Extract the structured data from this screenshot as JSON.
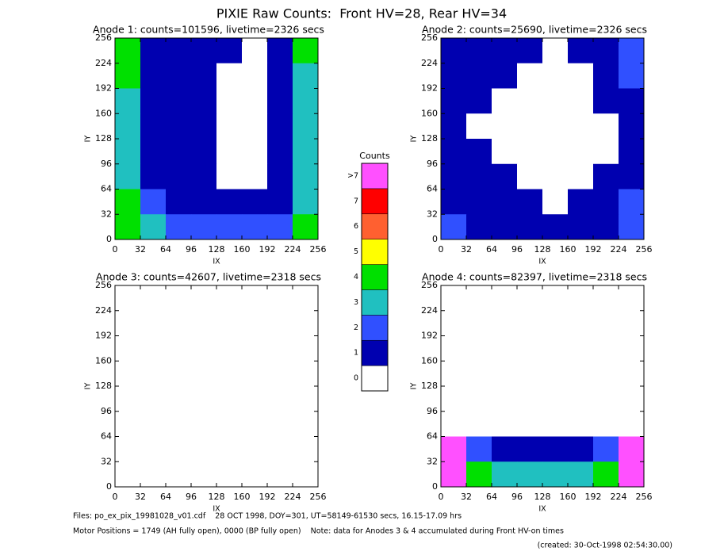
{
  "title": "PIXIE Raw Counts:  Front HV=28, Rear HV=34",
  "colorbar": {
    "title": "Counts",
    "labels": [
      "0",
      "1",
      "2",
      "3",
      "4",
      "5",
      "6",
      "7",
      ">7"
    ],
    "colors": [
      "#ffffff",
      "#0000b0",
      "#3050ff",
      "#20c0c0",
      "#00e000",
      "#ffff00",
      "#ff6030",
      "#ff0000",
      "#ff50ff"
    ]
  },
  "chart_data": [
    {
      "type": "heatmap",
      "title": "Anode 1: counts=101596, livetime=2326 secs",
      "xlabel": "IX",
      "ylabel": "IY",
      "xlim": [
        0,
        256
      ],
      "ylim": [
        0,
        256
      ],
      "xticks": [
        0,
        32,
        64,
        96,
        128,
        160,
        192,
        224,
        256
      ],
      "yticks": [
        0,
        32,
        64,
        96,
        128,
        160,
        192,
        224,
        256
      ],
      "z": [
        [
          4,
          1,
          1,
          1,
          1,
          0,
          1,
          4
        ],
        [
          4,
          1,
          1,
          1,
          0,
          0,
          1,
          3
        ],
        [
          3,
          1,
          1,
          1,
          0,
          0,
          1,
          3
        ],
        [
          3,
          1,
          1,
          1,
          0,
          0,
          1,
          3
        ],
        [
          3,
          1,
          1,
          1,
          0,
          0,
          1,
          3
        ],
        [
          3,
          1,
          1,
          1,
          0,
          0,
          1,
          3
        ],
        [
          4,
          2,
          1,
          1,
          1,
          1,
          1,
          3
        ],
        [
          4,
          3,
          2,
          2,
          2,
          2,
          2,
          4
        ]
      ]
    },
    {
      "type": "heatmap",
      "title": "Anode 2: counts=25690, livetime=2326 secs",
      "xlabel": "IX",
      "ylabel": "IY",
      "xlim": [
        0,
        256
      ],
      "ylim": [
        0,
        256
      ],
      "xticks": [
        0,
        32,
        64,
        96,
        128,
        160,
        192,
        224,
        256
      ],
      "yticks": [
        0,
        32,
        64,
        96,
        128,
        160,
        192,
        224,
        256
      ],
      "z": [
        [
          1,
          1,
          1,
          1,
          0,
          1,
          1,
          2
        ],
        [
          1,
          1,
          1,
          0,
          0,
          0,
          1,
          2
        ],
        [
          1,
          1,
          0,
          0,
          0,
          0,
          1,
          1
        ],
        [
          1,
          0,
          0,
          0,
          0,
          0,
          0,
          1
        ],
        [
          1,
          1,
          0,
          0,
          0,
          0,
          0,
          1
        ],
        [
          1,
          1,
          1,
          0,
          0,
          0,
          1,
          1
        ],
        [
          1,
          1,
          1,
          1,
          0,
          1,
          1,
          2
        ],
        [
          2,
          1,
          1,
          1,
          1,
          1,
          1,
          2
        ]
      ]
    },
    {
      "type": "heatmap",
      "title": "Anode 3: counts=42607, livetime=2318 secs",
      "xlabel": "IX",
      "ylabel": "IY",
      "xlim": [
        0,
        256
      ],
      "ylim": [
        0,
        256
      ],
      "xticks": [
        0,
        32,
        64,
        96,
        128,
        160,
        192,
        224,
        256
      ],
      "yticks": [
        0,
        32,
        64,
        96,
        128,
        160,
        192,
        224,
        256
      ],
      "z": [
        [
          0,
          0,
          0,
          0,
          0,
          0,
          0,
          0
        ],
        [
          0,
          0,
          0,
          0,
          0,
          0,
          0,
          0
        ],
        [
          0,
          0,
          0,
          0,
          0,
          0,
          0,
          0
        ],
        [
          0,
          0,
          0,
          0,
          0,
          0,
          0,
          0
        ],
        [
          0,
          0,
          0,
          0,
          0,
          0,
          0,
          0
        ],
        [
          0,
          0,
          0,
          0,
          0,
          0,
          0,
          0
        ],
        [
          0,
          0,
          0,
          0,
          0,
          0,
          0,
          0
        ],
        [
          0,
          0,
          0,
          0,
          0,
          0,
          0,
          0
        ]
      ]
    },
    {
      "type": "heatmap",
      "title": "Anode 4: counts=82397, livetime=2318 secs",
      "xlabel": "IX",
      "ylabel": "IY",
      "xlim": [
        0,
        256
      ],
      "ylim": [
        0,
        256
      ],
      "xticks": [
        0,
        32,
        64,
        96,
        128,
        160,
        192,
        224,
        256
      ],
      "yticks": [
        0,
        32,
        64,
        96,
        128,
        160,
        192,
        224,
        256
      ],
      "z": [
        [
          0,
          0,
          0,
          0,
          0,
          0,
          0,
          0
        ],
        [
          0,
          0,
          0,
          0,
          0,
          0,
          0,
          0
        ],
        [
          0,
          0,
          0,
          0,
          0,
          0,
          0,
          0
        ],
        [
          0,
          0,
          0,
          0,
          0,
          0,
          0,
          0
        ],
        [
          0,
          0,
          0,
          0,
          0,
          0,
          0,
          0
        ],
        [
          0,
          0,
          0,
          0,
          0,
          0,
          0,
          0
        ],
        [
          8,
          2,
          1,
          1,
          1,
          1,
          2,
          8
        ],
        [
          8,
          4,
          3,
          3,
          3,
          3,
          4,
          8
        ]
      ]
    }
  ],
  "footer": [
    "Files: po_ex_pix_19981028_v01.cdf    28 OCT 1998, DOY=301, UT=58149-61530 secs, 16.15-17.09 hrs",
    "Motor Positions = 1749 (AH fully open), 0000 (BP fully open)    Note: data for Anodes 3 & 4 accumulated during Front HV-on times",
    "(created: 30-Oct-1998 02:54:30.00)"
  ]
}
